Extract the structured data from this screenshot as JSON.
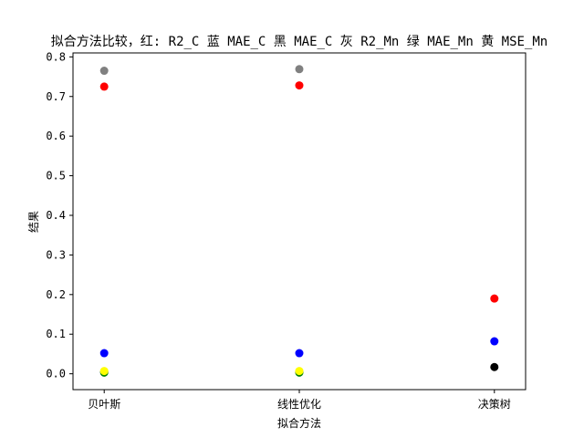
{
  "chart_data": {
    "type": "scatter",
    "title": "拟合方法比较，红: R2_C 蓝 MAE_C 黑 MAE_C 灰 R2_Mn 绿 MAE_Mn 黄 MSE_Mn",
    "xlabel": "拟合方法",
    "ylabel": "结果",
    "categories": [
      "贝叶斯",
      "线性优化",
      "决策树"
    ],
    "xlim": [
      -0.16,
      2.16
    ],
    "ylim": [
      -0.04,
      0.81
    ],
    "yticks": [
      "0.0",
      "0.1",
      "0.2",
      "0.3",
      "0.4",
      "0.5",
      "0.6",
      "0.7",
      "0.8"
    ],
    "grid": false,
    "series": [
      {
        "color": "#ff0000",
        "values": [
          0.725,
          0.728,
          0.19
        ]
      },
      {
        "color": "#0000ff",
        "values": [
          0.052,
          0.052,
          0.082
        ]
      },
      {
        "color": "#000000",
        "values": [
          0.005,
          0.005,
          0.017
        ]
      },
      {
        "color": "#808080",
        "values": [
          0.765,
          0.769,
          null
        ]
      },
      {
        "color": "#008000",
        "values": [
          0.003,
          0.003,
          null
        ]
      },
      {
        "color": "#ffff00",
        "values": [
          0.007,
          0.007,
          null
        ]
      }
    ]
  }
}
